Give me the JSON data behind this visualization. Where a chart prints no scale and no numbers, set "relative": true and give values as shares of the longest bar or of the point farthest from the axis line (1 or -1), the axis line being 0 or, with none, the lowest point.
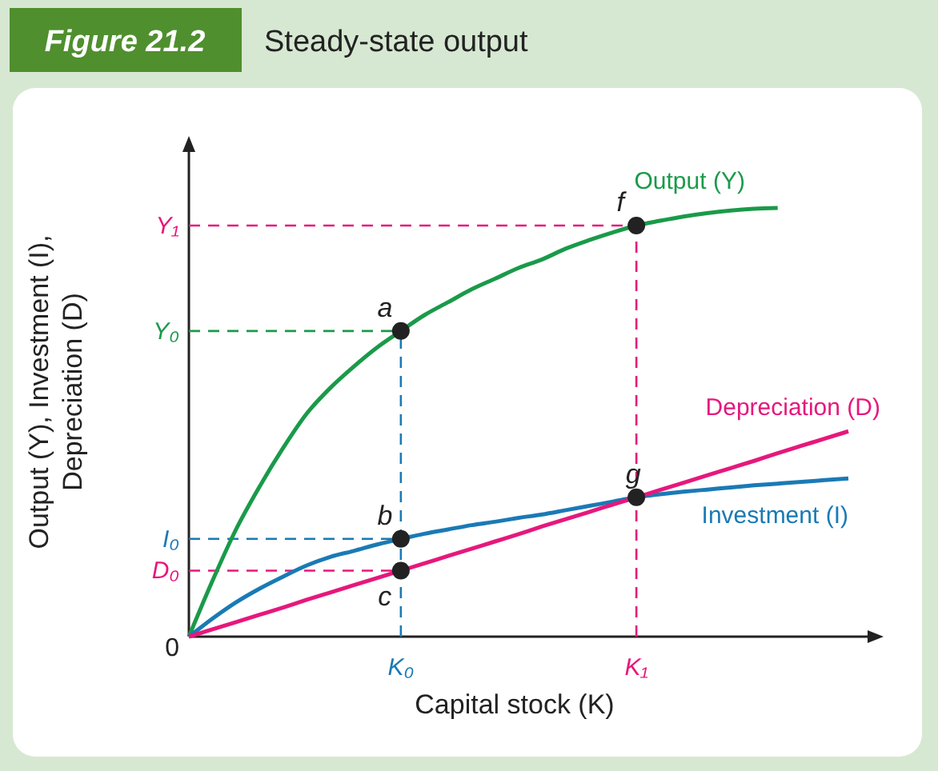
{
  "chart_data": {
    "type": "line",
    "relative": true,
    "title": "Figure 21.2",
    "subtitle": "Steady-state output",
    "xlabel": "Capital stock (K)",
    "ylabel": "Output (Y), Investment (I), Depreciation (D)",
    "categories": [
      null,
      null,
      null,
      null,
      null,
      null,
      null,
      null,
      null,
      "K₀",
      null,
      null,
      null,
      null,
      null,
      null,
      null,
      null,
      null,
      "K₁",
      null,
      null,
      null,
      null,
      null,
      null,
      null,
      null,
      null
    ],
    "series": [
      {
        "name": "Output (Y)",
        "color": "#1a9a4a",
        "values": [
          0,
          0.13,
          0.25,
          0.35,
          0.44,
          0.52,
          0.58,
          0.63,
          0.675,
          0.713,
          0.75,
          0.78,
          0.81,
          0.835,
          0.86,
          0.88,
          0.905,
          0.925,
          0.943,
          0.959,
          0.97,
          0.98,
          0.988,
          0.994,
          0.998,
          1,
          null,
          null,
          null
        ]
      },
      {
        "name": "Investment (I)",
        "color": "#1a7ab5",
        "values": [
          0,
          0.042,
          0.08,
          0.112,
          0.14,
          0.166,
          0.186,
          0.2,
          0.215,
          0.228,
          0.24,
          0.25,
          0.26,
          0.268,
          0.277,
          0.285,
          0.295,
          0.305,
          0.315,
          0.325,
          0.332,
          0.338,
          0.343,
          0.348,
          0.353,
          0.357,
          0.361,
          0.365,
          0.369
        ]
      },
      {
        "name": "Depreciation (D)",
        "color": "#e6187c",
        "values": [
          0,
          0.017,
          0.034,
          0.051,
          0.068,
          0.086,
          0.103,
          0.12,
          0.137,
          0.154,
          0.171,
          0.188,
          0.205,
          0.222,
          0.239,
          0.257,
          0.274,
          0.291,
          0.308,
          0.325,
          0.342,
          0.359,
          0.376,
          0.393,
          0.41,
          0.428,
          0.445,
          0.462,
          0.479
        ]
      }
    ],
    "ref_lines": [
      {
        "axis": "x",
        "value": "K₀",
        "color": "#1a7ab5",
        "line_style": "dashed"
      },
      {
        "axis": "x",
        "value": "K₁",
        "color": "#e6187c",
        "line_style": "dashed"
      },
      {
        "axis": "y",
        "value": 0.959,
        "label": "Y₁",
        "color": "#e6187c",
        "line_style": "dashed"
      },
      {
        "axis": "y",
        "value": 0.713,
        "label": "Y₀",
        "color": "#1a9a4a",
        "line_style": "dashed"
      },
      {
        "axis": "y",
        "value": 0.228,
        "label": "I₀",
        "color": "#1a7ab5",
        "line_style": "dashed"
      },
      {
        "axis": "y",
        "value": 0.154,
        "label": "D₀",
        "color": "#e6187c",
        "line_style": "dashed"
      }
    ],
    "annotations": [
      "0",
      {
        "text": "a",
        "x": "K₀",
        "y": 0.713
      },
      {
        "text": "b",
        "x": "K₀",
        "y": 0.228
      },
      {
        "text": "c",
        "x": "K₀",
        "y": 0.154
      },
      {
        "text": "f",
        "x": "K₁",
        "y": 0.959
      },
      {
        "text": "g",
        "x": "K₁",
        "y": 0.325
      }
    ]
  }
}
